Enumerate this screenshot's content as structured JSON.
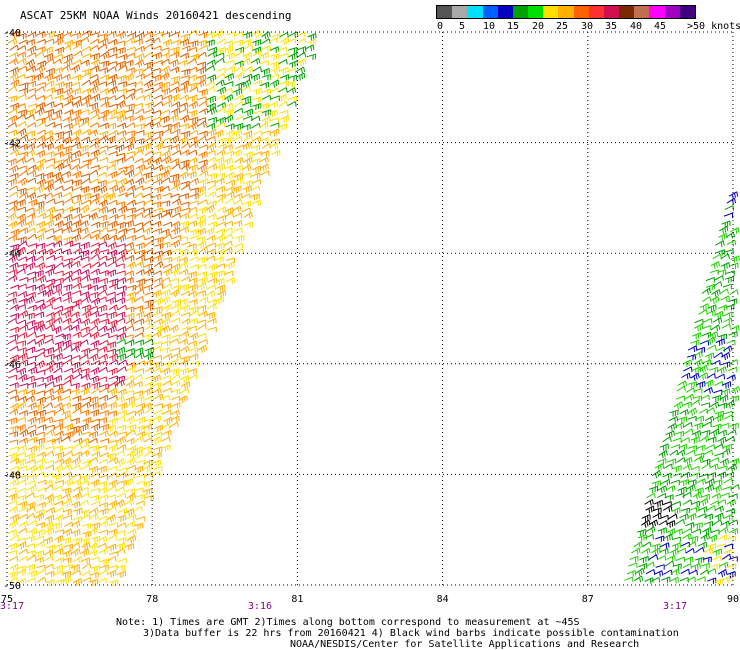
{
  "header": {
    "title": "ASCAT 25KM NOAA Winds 20160421 descending"
  },
  "speed_scale": {
    "colors": [
      "#555555",
      "#aaaaaa",
      "#00e0ff",
      "#0060ff",
      "#0000c0",
      "#00a000",
      "#00e000",
      "#ffe000",
      "#ffb000",
      "#ff6000",
      "#ff3030",
      "#d01050",
      "#7a2a00",
      "#c07050",
      "#ff00ff",
      "#a000c0",
      "#400080"
    ],
    "labels": [
      "0",
      "5",
      "10",
      "15",
      "20",
      "25",
      "30",
      "35",
      "40",
      "45",
      ">50 knots"
    ]
  },
  "map": {
    "lat_labels": [
      "-40",
      "-42",
      "-44",
      "-46",
      "-48",
      "-50"
    ],
    "lon_labels": [
      "75",
      "78",
      "81",
      "84",
      "87",
      "90"
    ],
    "time_labels": [
      "3:17",
      "3:16",
      "3:17"
    ],
    "lat_range": [
      -50,
      -40
    ],
    "lon_range": [
      75,
      90
    ],
    "swaths": [
      {
        "name": "western swath",
        "region": "75E-81E, 40S-50S",
        "colors": [
          "yellow",
          "orange",
          "red",
          "green"
        ]
      },
      {
        "name": "eastern swath",
        "region": "88E-90E, 43S-50S",
        "colors": [
          "green",
          "blue",
          "black",
          "yellow"
        ]
      }
    ]
  },
  "notes": {
    "line1": "Note: 1) Times are GMT 2)Times along bottom correspond to measurement at ~45S",
    "line2": "3)Data buffer is 22 hrs from 20160421 4) Black wind barbs indicate possible contamination",
    "line3": "NOAA/NESDIS/Center for Satellite Applications and Research"
  }
}
